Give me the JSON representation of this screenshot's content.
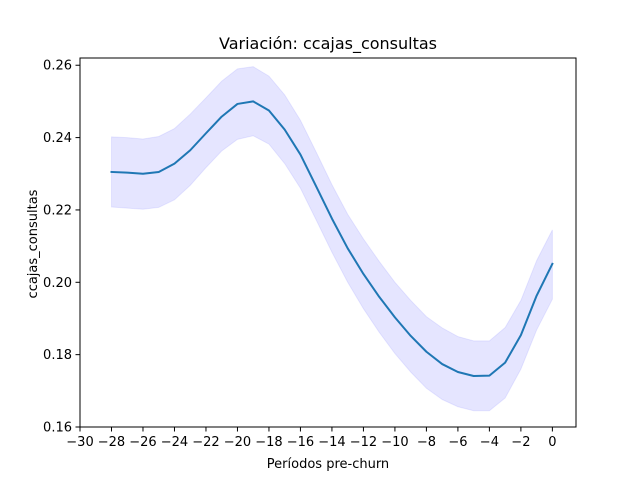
{
  "chart_data": {
    "type": "line",
    "title": "Variación: ccajas_consultas",
    "xlabel": "Períodos pre-churn",
    "ylabel": "ccajas_consultas",
    "xlim": [
      -30,
      1.5
    ],
    "ylim": [
      0.16,
      0.262
    ],
    "xticks": [
      -30,
      -28,
      -26,
      -24,
      -22,
      -20,
      -18,
      -16,
      -14,
      -12,
      -10,
      -8,
      -6,
      -4,
      -2,
      0
    ],
    "xtick_labels": [
      "−30",
      "−28",
      "−26",
      "−24",
      "−22",
      "−20",
      "−18",
      "−16",
      "−14",
      "−12",
      "−10",
      "−8",
      "−6",
      "−4",
      "−2",
      "0"
    ],
    "yticks": [
      0.16,
      0.18,
      0.2,
      0.22,
      0.24,
      0.26
    ],
    "ytick_labels": [
      "0.16",
      "0.18",
      "0.20",
      "0.22",
      "0.24",
      "0.26"
    ],
    "grid": false,
    "colors": {
      "line": "#1f77b4",
      "band_fill": "#0000ff",
      "band_opacity": 0.1
    },
    "series": [
      {
        "x": [
          -28,
          -27,
          -26,
          -25,
          -24,
          -23,
          -22,
          -21,
          -20,
          -19,
          -18,
          -17,
          -16,
          -15,
          -14,
          -13,
          -12,
          -11,
          -10,
          -9,
          -8,
          -7,
          -6,
          -5,
          -4,
          -3,
          -2,
          -1,
          0
        ],
        "values": [
          0.2305,
          0.2303,
          0.23,
          0.2305,
          0.2328,
          0.2365,
          0.2412,
          0.2458,
          0.2493,
          0.25,
          0.2475,
          0.2422,
          0.2353,
          0.2265,
          0.2176,
          0.2094,
          0.2023,
          0.196,
          0.1903,
          0.1852,
          0.1808,
          0.1774,
          0.1752,
          0.1741,
          0.1742,
          0.1778,
          0.1854,
          0.1963,
          0.2051
        ],
        "lower": [
          0.2208,
          0.2205,
          0.2202,
          0.2207,
          0.2228,
          0.2268,
          0.2317,
          0.2363,
          0.2395,
          0.2405,
          0.2382,
          0.2328,
          0.226,
          0.2172,
          0.2083,
          0.2,
          0.1927,
          0.1862,
          0.1803,
          0.1752,
          0.1707,
          0.1676,
          0.1656,
          0.1645,
          0.1645,
          0.168,
          0.176,
          0.1868,
          0.1953
        ],
        "upper": [
          0.2402,
          0.24,
          0.2396,
          0.2403,
          0.2425,
          0.2465,
          0.251,
          0.2556,
          0.259,
          0.2596,
          0.257,
          0.2518,
          0.2448,
          0.236,
          0.227,
          0.2188,
          0.212,
          0.2058,
          0.2,
          0.195,
          0.1905,
          0.1874,
          0.185,
          0.1838,
          0.1838,
          0.1875,
          0.195,
          0.206,
          0.2145
        ]
      }
    ]
  }
}
